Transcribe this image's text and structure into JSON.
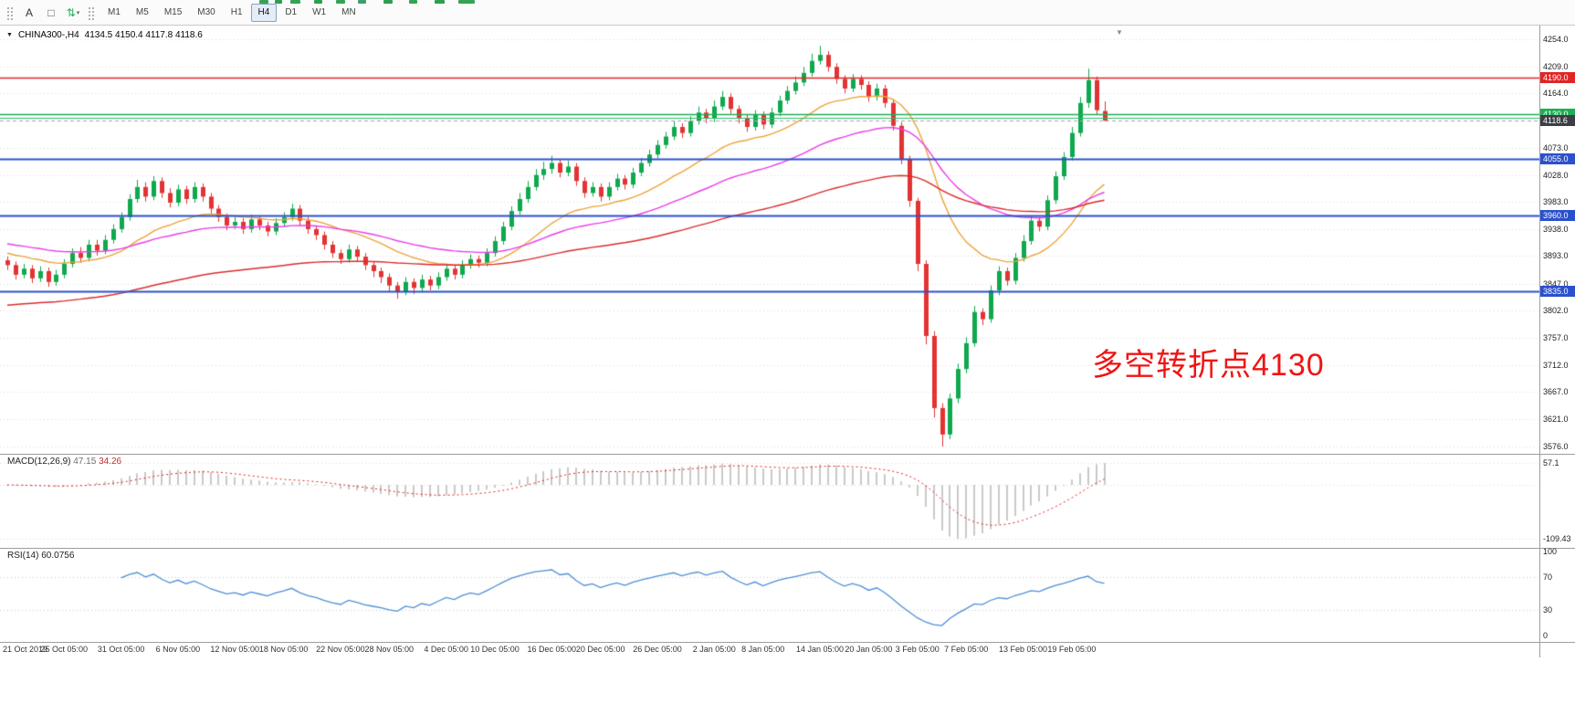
{
  "toolbar": {
    "tool_buttons": [
      {
        "id": "cursor-a",
        "glyph": "A",
        "color": "#333333"
      },
      {
        "id": "text-box",
        "glyph": "□",
        "color": "#555555"
      },
      {
        "id": "indicators",
        "glyph": "⇅",
        "color": "#1FAE54",
        "chevron": "▾"
      }
    ],
    "timeframes": [
      "M1",
      "M5",
      "M15",
      "M30",
      "H1",
      "H4",
      "D1",
      "W1",
      "MN"
    ],
    "active_timeframe": "H4"
  },
  "chart": {
    "symbol_label": "CHINA300-,H4",
    "ohlc_label": "4134.5 4150.4 4117.8 4118.6",
    "annotation": {
      "text": "多空转折点4130",
      "color": "#F01414"
    }
  },
  "price_axis": {
    "ticks": [
      4254.0,
      4209.0,
      4164.0,
      4073.0,
      4028.0,
      3983.0,
      3938.0,
      3893.0,
      3847.0,
      3802.0,
      3757.0,
      3712.0,
      3667.0,
      3621.0,
      3576.0
    ],
    "badges": [
      {
        "text": "4190.0",
        "price": 4190.0,
        "bg": "#E02525"
      },
      {
        "text": "4130.0",
        "price": 4130.0,
        "bg": "#1FAE54"
      },
      {
        "text": "4118.6",
        "price": 4118.6,
        "bg": "#3D3D46"
      },
      {
        "text": "4055.0",
        "price": 4055.0,
        "bg": "#2B50CC"
      },
      {
        "text": "3960.0",
        "price": 3960.0,
        "bg": "#2B50CC"
      },
      {
        "text": "3835.0",
        "price": 3835.0,
        "bg": "#2B50CC"
      }
    ]
  },
  "chart_data": {
    "type": "candlestick",
    "symbol": "CHINA300-",
    "timeframe": "H4",
    "price_range": [
      3576.0,
      4254.0
    ],
    "candle_up_color": "#0FA84E",
    "candle_down_color": "#E23333",
    "candles": [
      [
        3886,
        3892,
        3870,
        3878
      ],
      [
        3878,
        3884,
        3854,
        3862
      ],
      [
        3862,
        3880,
        3856,
        3872
      ],
      [
        3872,
        3878,
        3848,
        3856
      ],
      [
        3856,
        3876,
        3850,
        3868
      ],
      [
        3868,
        3874,
        3842,
        3850
      ],
      [
        3850,
        3870,
        3844,
        3862
      ],
      [
        3862,
        3888,
        3856,
        3880
      ],
      [
        3880,
        3906,
        3874,
        3898
      ],
      [
        3898,
        3908,
        3882,
        3890
      ],
      [
        3890,
        3920,
        3884,
        3912
      ],
      [
        3912,
        3920,
        3894,
        3902
      ],
      [
        3902,
        3928,
        3896,
        3920
      ],
      [
        3920,
        3946,
        3914,
        3938
      ],
      [
        3938,
        3966,
        3932,
        3958
      ],
      [
        3958,
        3996,
        3952,
        3988
      ],
      [
        3988,
        4020,
        3982,
        4008
      ],
      [
        4008,
        4016,
        3984,
        3992
      ],
      [
        3992,
        4026,
        3986,
        4018
      ],
      [
        4018,
        4024,
        3990,
        3998
      ],
      [
        3998,
        4006,
        3974,
        3982
      ],
      [
        3982,
        4012,
        3976,
        4004
      ],
      [
        4004,
        4010,
        3980,
        3988
      ],
      [
        3988,
        4016,
        3982,
        4008
      ],
      [
        4008,
        4014,
        3984,
        3992
      ],
      [
        3992,
        3998,
        3964,
        3972
      ],
      [
        3972,
        3978,
        3950,
        3958
      ],
      [
        3958,
        3964,
        3936,
        3944
      ],
      [
        3944,
        3958,
        3938,
        3950
      ],
      [
        3950,
        3956,
        3930,
        3938
      ],
      [
        3938,
        3962,
        3932,
        3954
      ],
      [
        3954,
        3960,
        3936,
        3944
      ],
      [
        3944,
        3950,
        3926,
        3934
      ],
      [
        3934,
        3956,
        3928,
        3948
      ],
      [
        3948,
        3966,
        3942,
        3958
      ],
      [
        3958,
        3980,
        3952,
        3972
      ],
      [
        3972,
        3978,
        3944,
        3952
      ],
      [
        3952,
        3958,
        3930,
        3938
      ],
      [
        3938,
        3944,
        3920,
        3928
      ],
      [
        3928,
        3934,
        3904,
        3912
      ],
      [
        3912,
        3918,
        3890,
        3898
      ],
      [
        3898,
        3904,
        3880,
        3888
      ],
      [
        3888,
        3912,
        3882,
        3904
      ],
      [
        3904,
        3910,
        3884,
        3892
      ],
      [
        3892,
        3898,
        3870,
        3878
      ],
      [
        3878,
        3884,
        3858,
        3868
      ],
      [
        3868,
        3874,
        3848,
        3858
      ],
      [
        3858,
        3864,
        3834,
        3844
      ],
      [
        3844,
        3850,
        3822,
        3834
      ],
      [
        3834,
        3858,
        3828,
        3850
      ],
      [
        3850,
        3856,
        3830,
        3840
      ],
      [
        3840,
        3862,
        3834,
        3854
      ],
      [
        3854,
        3860,
        3836,
        3844
      ],
      [
        3844,
        3866,
        3838,
        3858
      ],
      [
        3858,
        3880,
        3852,
        3872
      ],
      [
        3872,
        3878,
        3854,
        3862
      ],
      [
        3862,
        3886,
        3856,
        3878
      ],
      [
        3878,
        3896,
        3872,
        3888
      ],
      [
        3888,
        3894,
        3874,
        3882
      ],
      [
        3882,
        3906,
        3876,
        3898
      ],
      [
        3898,
        3926,
        3892,
        3918
      ],
      [
        3918,
        3950,
        3912,
        3942
      ],
      [
        3942,
        3976,
        3936,
        3968
      ],
      [
        3968,
        3998,
        3962,
        3988
      ],
      [
        3988,
        4018,
        3982,
        4008
      ],
      [
        4008,
        4038,
        4002,
        4028
      ],
      [
        4028,
        4050,
        4020,
        4038
      ],
      [
        4038,
        4060,
        4030,
        4048
      ],
      [
        4048,
        4054,
        4024,
        4032
      ],
      [
        4032,
        4052,
        4026,
        4042
      ],
      [
        4042,
        4048,
        4010,
        4018
      ],
      [
        4018,
        4024,
        3990,
        3998
      ],
      [
        3998,
        4016,
        3992,
        4008
      ],
      [
        4008,
        4014,
        3984,
        3992
      ],
      [
        3992,
        4016,
        3986,
        4008
      ],
      [
        4008,
        4030,
        4002,
        4022
      ],
      [
        4022,
        4028,
        4004,
        4012
      ],
      [
        4012,
        4040,
        4006,
        4032
      ],
      [
        4032,
        4056,
        4026,
        4048
      ],
      [
        4048,
        4070,
        4042,
        4062
      ],
      [
        4062,
        4086,
        4056,
        4078
      ],
      [
        4078,
        4100,
        4072,
        4092
      ],
      [
        4092,
        4118,
        4086,
        4108
      ],
      [
        4108,
        4114,
        4090,
        4098
      ],
      [
        4098,
        4126,
        4092,
        4118
      ],
      [
        4118,
        4142,
        4112,
        4132
      ],
      [
        4132,
        4138,
        4114,
        4122
      ],
      [
        4122,
        4152,
        4116,
        4142
      ],
      [
        4142,
        4168,
        4136,
        4158
      ],
      [
        4158,
        4164,
        4130,
        4138
      ],
      [
        4138,
        4144,
        4114,
        4122
      ],
      [
        4122,
        4128,
        4100,
        4108
      ],
      [
        4108,
        4136,
        4102,
        4128
      ],
      [
        4128,
        4134,
        4104,
        4112
      ],
      [
        4112,
        4140,
        4106,
        4132
      ],
      [
        4132,
        4160,
        4126,
        4152
      ],
      [
        4152,
        4176,
        4146,
        4168
      ],
      [
        4168,
        4192,
        4162,
        4182
      ],
      [
        4182,
        4208,
        4176,
        4198
      ],
      [
        4198,
        4230,
        4192,
        4218
      ],
      [
        4218,
        4243,
        4212,
        4228
      ],
      [
        4228,
        4234,
        4200,
        4208
      ],
      [
        4208,
        4214,
        4180,
        4188
      ],
      [
        4188,
        4194,
        4164,
        4172
      ],
      [
        4172,
        4196,
        4166,
        4188
      ],
      [
        4188,
        4194,
        4170,
        4178
      ],
      [
        4178,
        4184,
        4150,
        4158
      ],
      [
        4158,
        4180,
        4152,
        4172
      ],
      [
        4172,
        4178,
        4140,
        4148
      ],
      [
        4148,
        4154,
        4102,
        4110
      ],
      [
        4110,
        4116,
        4046,
        4055
      ],
      [
        4055,
        4060,
        3975,
        3985
      ],
      [
        3985,
        3990,
        3868,
        3880
      ],
      [
        3880,
        3886,
        3746,
        3760
      ],
      [
        3760,
        3768,
        3624,
        3640
      ],
      [
        3640,
        3648,
        3576,
        3596
      ],
      [
        3596,
        3664,
        3588,
        3656
      ],
      [
        3656,
        3714,
        3648,
        3705
      ],
      [
        3705,
        3758,
        3698,
        3748
      ],
      [
        3748,
        3810,
        3742,
        3800
      ],
      [
        3800,
        3806,
        3778,
        3788
      ],
      [
        3788,
        3844,
        3782,
        3836
      ],
      [
        3836,
        3876,
        3828,
        3868
      ],
      [
        3868,
        3874,
        3844,
        3852
      ],
      [
        3852,
        3898,
        3846,
        3890
      ],
      [
        3890,
        3928,
        3884,
        3918
      ],
      [
        3918,
        3960,
        3912,
        3952
      ],
      [
        3952,
        3958,
        3934,
        3942
      ],
      [
        3942,
        3994,
        3936,
        3986
      ],
      [
        3986,
        4034,
        3980,
        4026
      ],
      [
        4026,
        4066,
        4020,
        4058
      ],
      [
        4058,
        4108,
        4052,
        4098
      ],
      [
        4098,
        4158,
        4092,
        4148
      ],
      [
        4148,
        4205,
        4140,
        4186
      ],
      [
        4186,
        4192,
        4128,
        4136
      ],
      [
        4134.5,
        4150.4,
        4117.8,
        4118.6
      ]
    ],
    "x_labels": [
      {
        "i": 0,
        "t": "21 Oct 2019"
      },
      {
        "i": 7,
        "t": "25 Oct 05:00"
      },
      {
        "i": 14,
        "t": "31 Oct 05:00"
      },
      {
        "i": 21,
        "t": "6 Nov 05:00"
      },
      {
        "i": 28,
        "t": "12 Nov 05:00"
      },
      {
        "i": 34,
        "t": "18 Nov 05:00"
      },
      {
        "i": 41,
        "t": "22 Nov 05:00"
      },
      {
        "i": 47,
        "t": "28 Nov 05:00"
      },
      {
        "i": 54,
        "t": "4 Dec 05:00"
      },
      {
        "i": 60,
        "t": "10 Dec 05:00"
      },
      {
        "i": 67,
        "t": "16 Dec 05:00"
      },
      {
        "i": 73,
        "t": "20 Dec 05:00"
      },
      {
        "i": 80,
        "t": "26 Dec 05:00"
      },
      {
        "i": 87,
        "t": "2 Jan 05:00"
      },
      {
        "i": 93,
        "t": "8 Jan 05:00"
      },
      {
        "i": 100,
        "t": "14 Jan 05:00"
      },
      {
        "i": 106,
        "t": "20 Jan 05:00"
      },
      {
        "i": 112,
        "t": "3 Feb 05:00"
      },
      {
        "i": 118,
        "t": "7 Feb 05:00"
      },
      {
        "i": 125,
        "t": "13 Feb 05:00"
      },
      {
        "i": 131,
        "t": "19 Feb 05:00"
      }
    ],
    "moving_averages": [
      {
        "name": "fast-ma",
        "period": 20,
        "seed": 3900,
        "color": "#EDA33B"
      },
      {
        "name": "medium-ma",
        "period": 45,
        "seed": 3915,
        "color": "#E93BE9"
      },
      {
        "name": "slow-ma",
        "period": 100,
        "seed": 3810,
        "color": "#D92C2C"
      }
    ],
    "h_lines": [
      {
        "price": 4190.0,
        "color": "#E02525",
        "width": 1.5
      },
      {
        "price": 4130.0,
        "color": "#1FAE54",
        "width": 1.5
      },
      {
        "price": 4124.0,
        "color": "#2FBE6A",
        "width": 1
      },
      {
        "price": 4118.6,
        "color": "#A8A8A8",
        "width": 1,
        "dash": [
          4,
          3
        ]
      },
      {
        "price": 4055.0,
        "color": "#2B50CC",
        "width": 2
      },
      {
        "price": 3960.0,
        "color": "#2B50CC",
        "width": 2
      },
      {
        "price": 3835.0,
        "color": "#2B50CC",
        "width": 2
      }
    ]
  },
  "macd": {
    "label": "MACD(12,26,9)",
    "value_main": "47.15",
    "value_signal": "34.26",
    "fast": 12,
    "slow": 26,
    "signal": 9,
    "scale": {
      "top": "57.1",
      "bottom": "-109.43"
    },
    "histogram_color": "#C9C9C9",
    "signal_color": "#E02020"
  },
  "rsi": {
    "label": "RSI(14)",
    "value": "60.0756",
    "period": 14,
    "levels": [
      100,
      70,
      30,
      0
    ],
    "line_color": "#4E8FD5"
  }
}
